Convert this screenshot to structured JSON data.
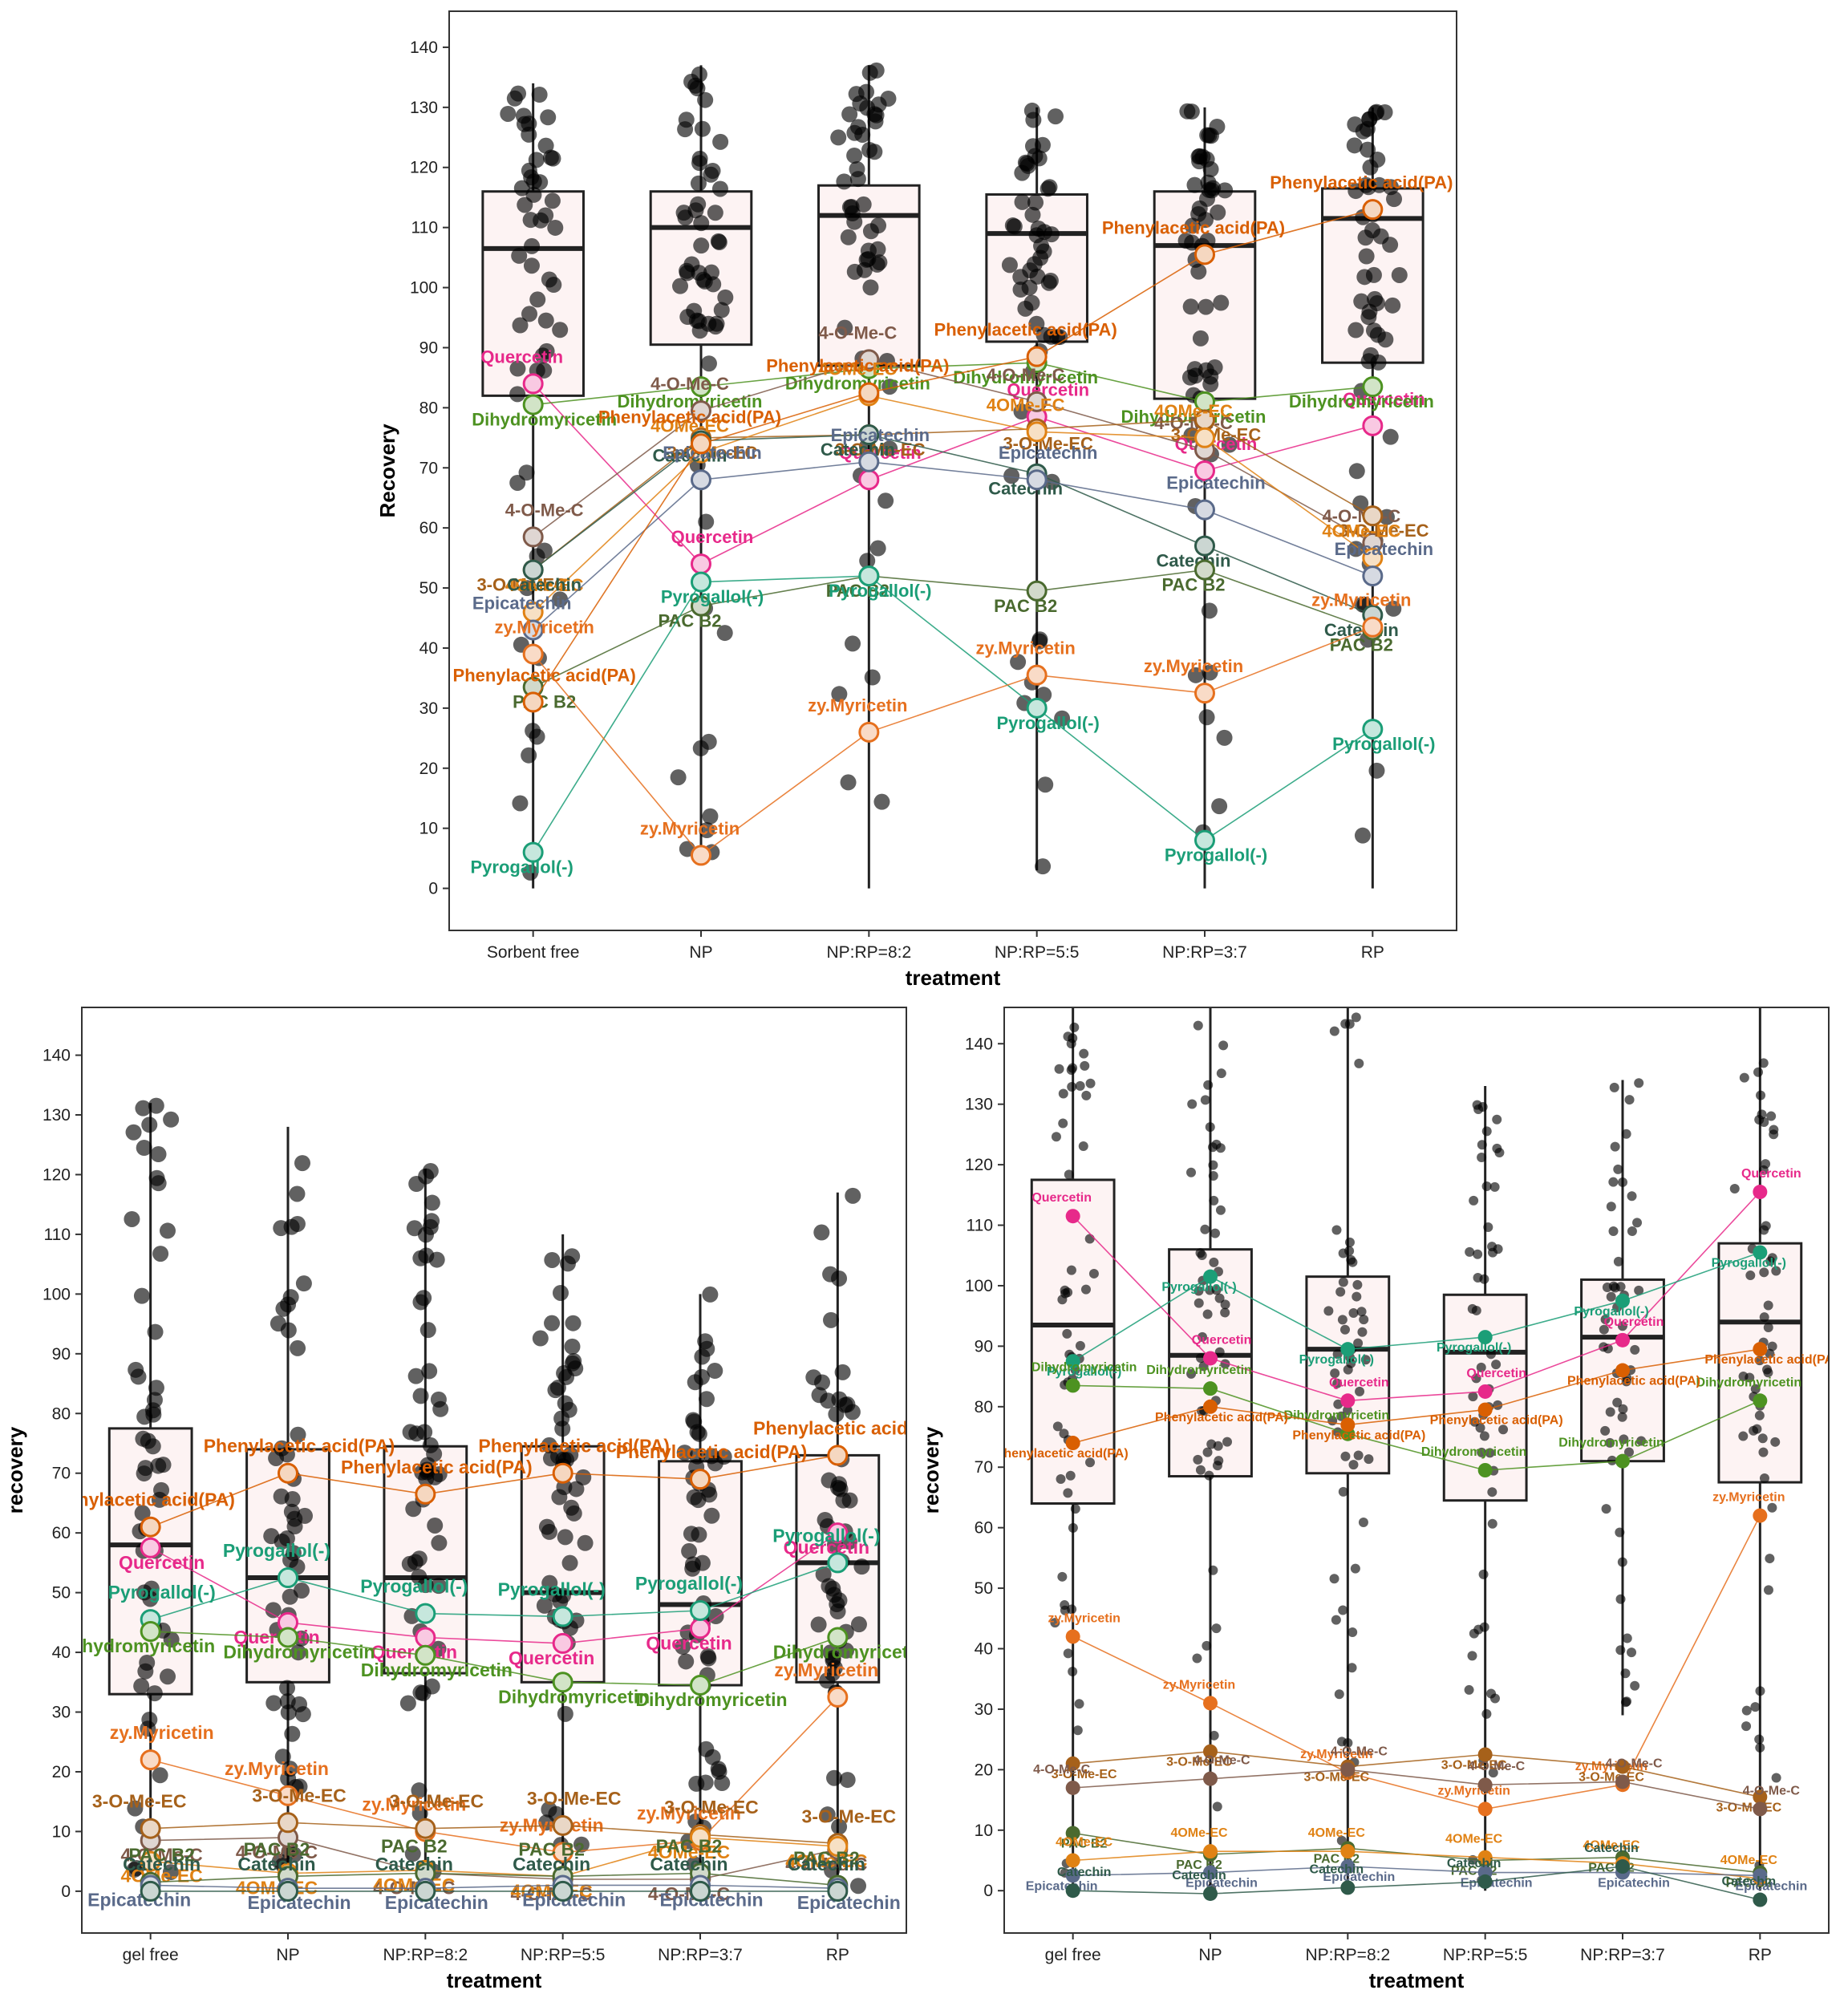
{
  "colors": {
    "box_fill": "#fdf3f3",
    "point": "#000000",
    "Quercetin": "#e7298a",
    "Dihydromyricetin": "#4d9221",
    "4-O-Me-C": "#7f5a4a",
    "3-O-Me-EC": "#a6611a",
    "4OMe-EC": "#e08214",
    "Catechin": "#2f5a4a",
    "Epicatechin": "#5a6a8a",
    "PAC B2": "#4a6a2f",
    "Phenylacetic acid(PA)": "#d95f02",
    "Pyrogallol(-)": "#1b9e77",
    "zy.Myricetin": "#e6701e"
  },
  "chart_data": [
    {
      "type": "box",
      "panel": "top",
      "xlabel": "treatment",
      "ylabel": "Recovery",
      "categories": [
        "Sorbent free",
        "NP",
        "NP:RP=8:2",
        "NP:RP=5:5",
        "NP:RP=3:7",
        "RP"
      ],
      "ylim": [
        -7,
        146
      ],
      "yticks": [
        0,
        10,
        20,
        30,
        40,
        50,
        60,
        70,
        80,
        90,
        100,
        110,
        120,
        130,
        140
      ],
      "grid": false,
      "boxes": [
        {
          "q1": 82,
          "median": 106.5,
          "q3": 116,
          "lower": 0,
          "upper": 134
        },
        {
          "q1": 90.5,
          "median": 110,
          "q3": 116,
          "lower": 5,
          "upper": 137
        },
        {
          "q1": 87,
          "median": 112,
          "q3": 117,
          "lower": 0,
          "upper": 137
        },
        {
          "q1": 91,
          "median": 109,
          "q3": 115.5,
          "lower": 3,
          "upper": 130
        },
        {
          "q1": 81.5,
          "median": 107,
          "q3": 116,
          "lower": 0,
          "upper": 130
        },
        {
          "q1": 87.5,
          "median": 111.5,
          "q3": 116.5,
          "lower": 0,
          "upper": 130
        }
      ],
      "series": [
        {
          "name": "Quercetin",
          "values": [
            84,
            54,
            68,
            78.5,
            69.5,
            77
          ]
        },
        {
          "name": "Dihydromyricetin",
          "values": [
            80.5,
            83.5,
            86.5,
            87.5,
            81,
            83.5
          ]
        },
        {
          "name": "4-O-Me-C",
          "values": [
            58.5,
            79.5,
            88,
            81,
            73,
            57.5
          ]
        },
        {
          "name": "3-O-Me-EC",
          "values": [
            53,
            75,
            75.5,
            76.5,
            78,
            62
          ]
        },
        {
          "name": "4OMe-EC",
          "values": [
            46,
            72.5,
            82,
            76,
            75,
            55
          ]
        },
        {
          "name": "Catechin",
          "values": [
            53,
            74.5,
            75.5,
            69,
            57,
            45.5
          ]
        },
        {
          "name": "Epicatechin",
          "values": [
            43,
            68,
            71,
            68,
            63,
            52
          ]
        },
        {
          "name": "PAC B2",
          "values": [
            33.5,
            47,
            52,
            49.5,
            53,
            43
          ]
        },
        {
          "name": "Phenylacetic acid(PA)",
          "values": [
            31,
            74,
            82.5,
            88.5,
            105.5,
            113
          ]
        },
        {
          "name": "Pyrogallol(-)",
          "values": [
            6,
            51,
            52,
            30,
            8,
            26.5
          ]
        },
        {
          "name": "zy.Myricetin",
          "values": [
            39,
            5.5,
            26,
            35.5,
            32.5,
            43.5
          ]
        }
      ]
    },
    {
      "type": "box",
      "panel": "bottom-left",
      "xlabel": "treatment",
      "ylabel": "recovery",
      "categories": [
        "gel free",
        "NP",
        "NP:RP=8:2",
        "NP:RP=5:5",
        "NP:RP=3:7",
        "RP"
      ],
      "ylim": [
        -7,
        148
      ],
      "yticks": [
        0,
        10,
        20,
        30,
        40,
        50,
        60,
        70,
        80,
        90,
        100,
        110,
        120,
        130,
        140
      ],
      "grid": false,
      "boxes": [
        {
          "q1": 33,
          "median": 58,
          "q3": 77.5,
          "lower": 0,
          "upper": 132
        },
        {
          "q1": 35,
          "median": 52.5,
          "q3": 74,
          "lower": 0,
          "upper": 128
        },
        {
          "q1": 36.5,
          "median": 52.5,
          "q3": 74.5,
          "lower": 0,
          "upper": 121
        },
        {
          "q1": 35,
          "median": 50,
          "q3": 74.5,
          "lower": 0,
          "upper": 110
        },
        {
          "q1": 34.5,
          "median": 48,
          "q3": 72,
          "lower": 0,
          "upper": 100
        },
        {
          "q1": 35,
          "median": 55,
          "q3": 73,
          "lower": 0,
          "upper": 117
        }
      ],
      "series": [
        {
          "name": "Phenylacetic acid(PA)",
          "values": [
            61,
            70,
            66.5,
            70,
            69,
            73
          ]
        },
        {
          "name": "Quercetin",
          "values": [
            57.5,
            45,
            42.5,
            41.5,
            44,
            60
          ]
        },
        {
          "name": "Pyrogallol(-)",
          "values": [
            45.5,
            52.5,
            46.5,
            46,
            47,
            55
          ]
        },
        {
          "name": "Dihydromyricetin",
          "values": [
            43.5,
            42.5,
            39.5,
            35,
            34.5,
            42.5
          ]
        },
        {
          "name": "zy.Myricetin",
          "values": [
            22,
            16,
            10,
            6.5,
            8.5,
            32.5
          ]
        },
        {
          "name": "4-O-Me-C",
          "values": [
            8.5,
            9,
            3,
            2,
            2,
            7
          ]
        },
        {
          "name": "3-O-Me-EC",
          "values": [
            10.5,
            11.5,
            10.5,
            11,
            9.5,
            8
          ]
        },
        {
          "name": "4OMe-EC",
          "values": [
            5,
            3,
            3.5,
            2.5,
            9,
            7.5
          ]
        },
        {
          "name": "PAC B2",
          "values": [
            1.5,
            2.5,
            3,
            2.5,
            3,
            1
          ]
        },
        {
          "name": "Epicatechin",
          "values": [
            1,
            0.5,
            0.5,
            1,
            1,
            0.5
          ]
        },
        {
          "name": "Catechin",
          "values": [
            0,
            0,
            0,
            0,
            0,
            0
          ]
        }
      ]
    },
    {
      "type": "box",
      "panel": "bottom-right",
      "xlabel": "treatment",
      "ylabel": "recovery",
      "categories": [
        "gel free",
        "NP",
        "NP:RP=8:2",
        "NP:RP=5:5",
        "NP:RP=3:7",
        "RP"
      ],
      "ylim": [
        -7,
        146
      ],
      "yticks": [
        0,
        10,
        20,
        30,
        40,
        50,
        60,
        70,
        80,
        90,
        100,
        110,
        120,
        130,
        140
      ],
      "grid": false,
      "boxes": [
        {
          "q1": 64,
          "median": 93.5,
          "q3": 117.5,
          "lower": 0,
          "upper": 146
        },
        {
          "q1": 68.5,
          "median": 88.5,
          "q3": 106,
          "lower": 0,
          "upper": 146
        },
        {
          "q1": 69,
          "median": 89.5,
          "q3": 101.5,
          "lower": 0,
          "upper": 146
        },
        {
          "q1": 64.5,
          "median": 89,
          "q3": 98.5,
          "lower": 0,
          "upper": 133
        },
        {
          "q1": 71,
          "median": 91.5,
          "q3": 101,
          "lower": 29,
          "upper": 134
        },
        {
          "q1": 67.5,
          "median": 94,
          "q3": 107,
          "lower": 0,
          "upper": 146
        }
      ],
      "series": [
        {
          "name": "Quercetin",
          "values": [
            111.5,
            88,
            81,
            82.5,
            91,
            115.5
          ]
        },
        {
          "name": "Pyrogallol(-)",
          "values": [
            87.5,
            101.5,
            89.5,
            91.5,
            97.5,
            105.5
          ]
        },
        {
          "name": "Dihydromyricetin",
          "values": [
            83.5,
            83,
            75.5,
            69.5,
            71,
            81
          ]
        },
        {
          "name": "Phenylacetic acid(PA)",
          "values": [
            74,
            80,
            77,
            79.5,
            86,
            89.5
          ]
        },
        {
          "name": "zy.Myricetin",
          "values": [
            42,
            31,
            19.5,
            13.5,
            17.5,
            62
          ]
        },
        {
          "name": "3-O-Me-EC",
          "values": [
            21,
            23,
            20.5,
            22.5,
            20.5,
            15.5
          ]
        },
        {
          "name": "4-O-Me-C",
          "values": [
            17,
            18.5,
            20,
            17.5,
            18,
            13.5
          ]
        },
        {
          "name": "PAC B2",
          "values": [
            9.5,
            6,
            7,
            5,
            5.5,
            3
          ]
        },
        {
          "name": "4OMe-EC",
          "values": [
            5,
            6.5,
            6.5,
            5.5,
            4.5,
            2
          ]
        },
        {
          "name": "Epicatechin",
          "values": [
            2.5,
            3,
            4,
            3,
            3,
            2.5
          ]
        },
        {
          "name": "Catechin",
          "values": [
            0,
            -0.5,
            0.5,
            1.5,
            4,
            -1.5
          ]
        }
      ]
    }
  ]
}
